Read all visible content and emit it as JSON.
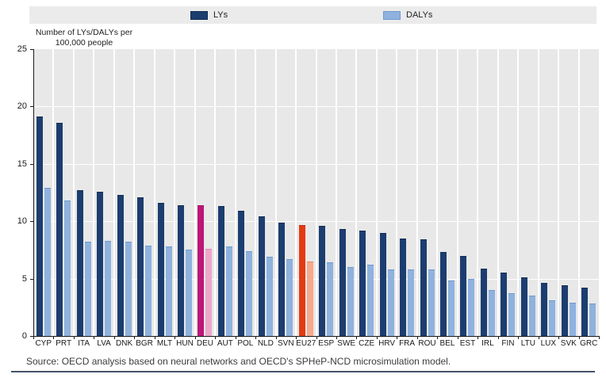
{
  "legend": {
    "items": [
      {
        "label": "LYs",
        "color_key": "ly"
      },
      {
        "label": "DALYs",
        "color_key": "daly"
      }
    ]
  },
  "y_axis": {
    "title_line1": "Number of LYs/DALYs per",
    "title_line2": "100,000 people",
    "ticks": [
      0,
      5,
      10,
      15,
      20,
      25
    ],
    "max": 25
  },
  "source": "Source: OECD analysis based on neural networks and OECD's SPHeP-NCD microsimulation model.",
  "colors": {
    "ly_fill": "#1c3d6f",
    "ly_border": "#122c52",
    "daly_fill": "#8fb2de",
    "daly_border": "#6f9acd",
    "deu_ly_fill": "#bc1677",
    "deu_ly_border": "#9a115f",
    "deu_daly_fill": "#efa6c9",
    "deu_daly_border": "#dd86b2",
    "eu27_ly_fill": "#e33b11",
    "eu27_ly_border": "#bb2e0b",
    "eu27_daly_fill": "#f8a98c",
    "eu27_daly_border": "#ea8765",
    "plot_bg": "#e8e8e8",
    "legend_bg": "#ebebeb",
    "grid": "#ffffff",
    "axis": "#1a1a1a",
    "rule": "#44546a"
  },
  "chart_data": {
    "type": "bar",
    "title": "",
    "xlabel": "",
    "ylabel": "Number of LYs/DALYs per 100,000 people",
    "ylim": [
      0,
      25
    ],
    "grid": true,
    "legend_position": "top",
    "categories": [
      "CYP",
      "PRT",
      "ITA",
      "LVA",
      "DNK",
      "BGR",
      "MLT",
      "HUN",
      "DEU",
      "AUT",
      "POL",
      "NLD",
      "SVN",
      "EU27",
      "ESP",
      "SWE",
      "CZE",
      "HRV",
      "FRA",
      "ROU",
      "BEL",
      "EST",
      "IRL",
      "FIN",
      "LTU",
      "LUX",
      "SVK",
      "GRC"
    ],
    "series": [
      {
        "name": "LYs",
        "values": [
          19.1,
          18.6,
          12.7,
          12.6,
          12.3,
          12.1,
          11.6,
          11.4,
          11.4,
          11.3,
          10.9,
          10.4,
          9.9,
          9.7,
          9.6,
          9.3,
          9.2,
          9.0,
          8.5,
          8.4,
          7.3,
          7.0,
          5.9,
          5.5,
          5.1,
          4.6,
          4.4,
          4.2
        ]
      },
      {
        "name": "DALYs",
        "values": [
          12.9,
          11.8,
          8.2,
          8.3,
          8.2,
          7.9,
          7.8,
          7.5,
          7.6,
          7.8,
          7.4,
          6.9,
          6.7,
          6.5,
          6.4,
          6.0,
          6.2,
          5.8,
          5.8,
          5.8,
          4.8,
          5.0,
          4.0,
          3.7,
          3.5,
          3.1,
          2.9,
          2.8
        ]
      }
    ],
    "highlighted_categories": {
      "DEU": "deu",
      "EU27": "eu27"
    }
  }
}
